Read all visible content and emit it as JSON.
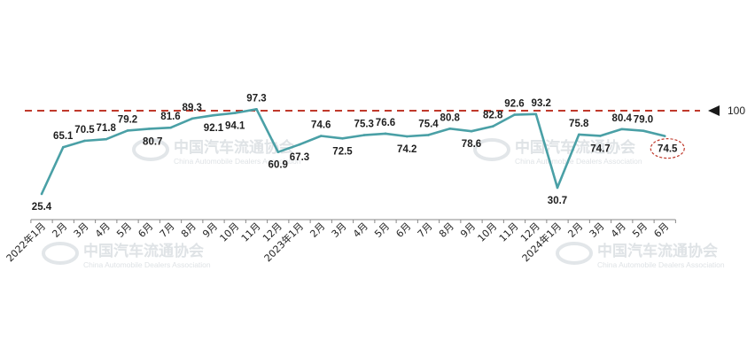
{
  "chart_data": {
    "type": "line",
    "categories": [
      "2022年1月",
      "2月",
      "3月",
      "4月",
      "5月",
      "6月",
      "7月",
      "8月",
      "9月",
      "10月",
      "11月",
      "12月",
      "2023年1月",
      "2月",
      "3月",
      "4月",
      "5月",
      "6月",
      "7月",
      "8月",
      "9月",
      "10月",
      "11月",
      "12月",
      "2024年1月",
      "2月",
      "3月",
      "4月",
      "5月",
      "6月"
    ],
    "values": [
      25.4,
      65.1,
      70.5,
      71.8,
      79.2,
      80.7,
      81.6,
      89.3,
      92.1,
      94.1,
      97.3,
      60.9,
      67.3,
      74.6,
      72.5,
      75.3,
      76.6,
      74.2,
      75.4,
      80.8,
      78.6,
      82.8,
      92.6,
      93.2,
      30.7,
      75.8,
      74.7,
      80.4,
      79.0,
      74.5
    ],
    "value_labels": [
      "25.4",
      "65.1",
      "70.5",
      "71.8",
      "79.2",
      "80.7",
      "81.6",
      "89.3",
      "92.1",
      "94.1",
      "97.3",
      "60.9",
      "67.3",
      "74.6",
      "72.5",
      "75.3",
      "76.6",
      "74.2",
      "75.4",
      "80.8",
      "78.6",
      "82.8",
      "92.6",
      "93.2",
      "30.7",
      "75.8",
      "74.7",
      "80.4",
      "79.0",
      "74.5"
    ],
    "reference_line": {
      "value": 100,
      "label": "100",
      "color": "#c0392b"
    },
    "highlight_last": true,
    "line_color": "#4aa0a6",
    "title": "",
    "xlabel": "",
    "ylabel": "",
    "grid": false
  },
  "watermark": {
    "cn": "中国汽车流通协会",
    "en": "China Automobile Dealers Association"
  }
}
